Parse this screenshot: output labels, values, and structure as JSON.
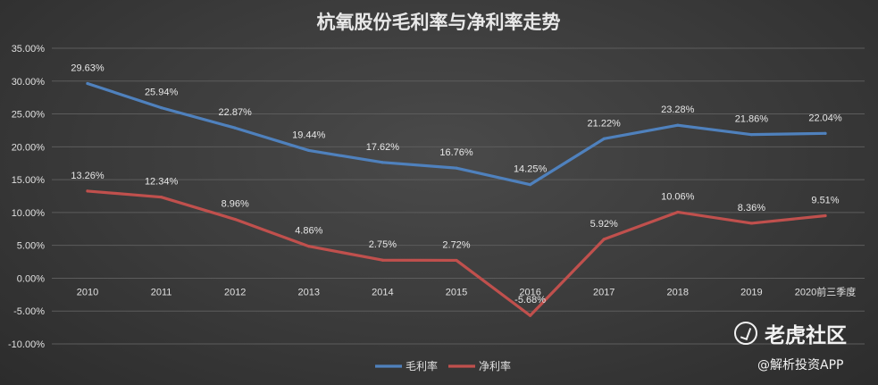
{
  "chart_data": {
    "type": "line",
    "title": "杭氧股份毛利率与净利率走势",
    "categories": [
      "2010",
      "2011",
      "2012",
      "2013",
      "2014",
      "2015",
      "2016",
      "2017",
      "2018",
      "2019",
      "2020前三季度"
    ],
    "series": [
      {
        "name": "毛利率",
        "color": "#4f81bd",
        "values": [
          29.63,
          25.94,
          22.87,
          19.44,
          17.62,
          16.76,
          14.25,
          21.22,
          23.28,
          21.86,
          22.04
        ],
        "labels": [
          "29.63%",
          "25.94%",
          "22.87%",
          "19.44%",
          "17.62%",
          "16.76%",
          "14.25%",
          "21.22%",
          "23.28%",
          "21.86%",
          "22.04%"
        ]
      },
      {
        "name": "净利率",
        "color": "#c0504d",
        "values": [
          13.26,
          12.34,
          8.96,
          4.86,
          2.75,
          2.72,
          -5.68,
          5.92,
          10.06,
          8.36,
          9.51
        ],
        "labels": [
          "13.26%",
          "12.34%",
          "8.96%",
          "4.86%",
          "2.75%",
          "2.72%",
          "-5.68%",
          "5.92%",
          "10.06%",
          "8.36%",
          "9.51%"
        ]
      }
    ],
    "ylim": [
      -10,
      35
    ],
    "yticks": [
      35,
      30,
      25,
      20,
      15,
      10,
      5,
      0,
      -5,
      -10
    ],
    "ytick_labels": [
      "35.00%",
      "30.00%",
      "25.00%",
      "20.00%",
      "15.00%",
      "10.00%",
      "5.00%",
      "0.00%",
      "-5.00%",
      "-10.00%"
    ],
    "grid": true,
    "legend_position": "bottom"
  },
  "watermark": {
    "brand": "老虎社区",
    "sub": "@解析投资APP"
  }
}
